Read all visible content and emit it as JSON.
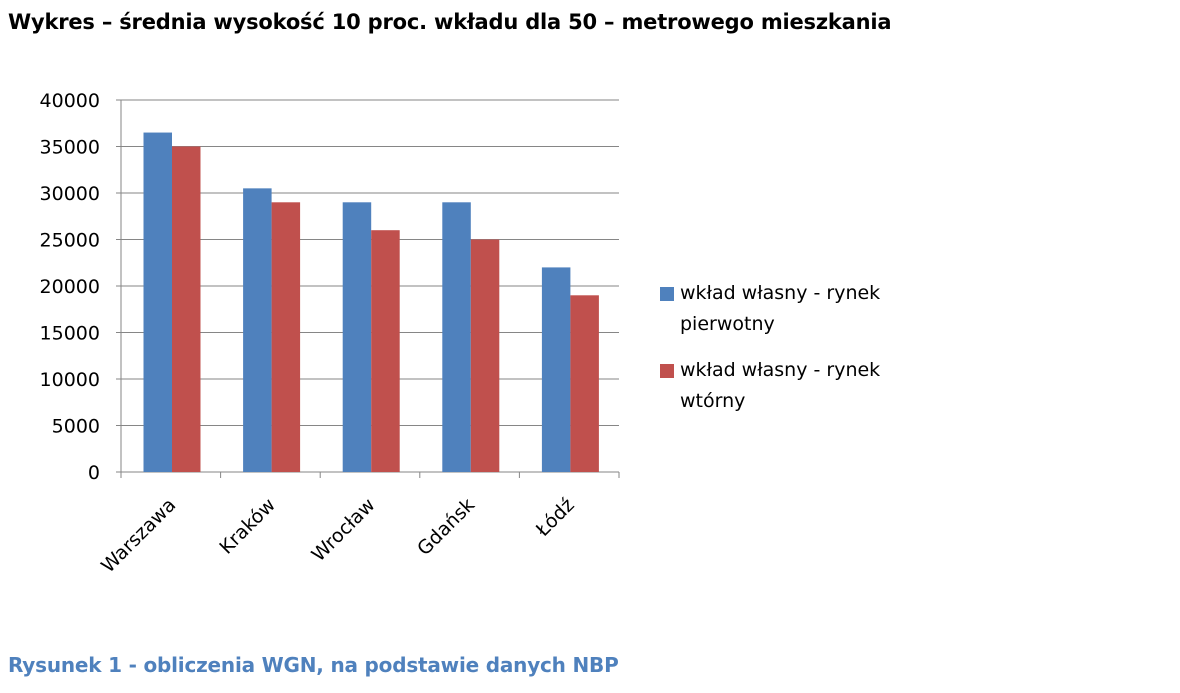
{
  "chart_data": {
    "type": "bar",
    "title": "Wykres – średnia wysokość 10 proc. wkładu dla 50 – metrowego mieszkania",
    "categories": [
      "Warszawa",
      "Kraków",
      "Wrocław",
      "Gdańsk",
      "Łódź"
    ],
    "series": [
      {
        "name": "wkład własny - rynek pierwotny",
        "color": "#4F81BD",
        "values": [
          36500,
          30500,
          29000,
          29000,
          22000
        ]
      },
      {
        "name": "wkład własny - rynek wtórny",
        "color": "#C0504D",
        "values": [
          35000,
          29000,
          26000,
          25000,
          19000
        ]
      }
    ],
    "xlabel": "",
    "ylabel": "",
    "ylim": [
      0,
      40000
    ],
    "yticks": [
      0,
      5000,
      10000,
      15000,
      20000,
      25000,
      30000,
      35000,
      40000
    ],
    "grid": true,
    "legend_position": "right"
  },
  "caption": {
    "text": "Rysunek 1 - obliczenia WGN, na podstawie danych NBP",
    "color": "#4F81BD"
  }
}
